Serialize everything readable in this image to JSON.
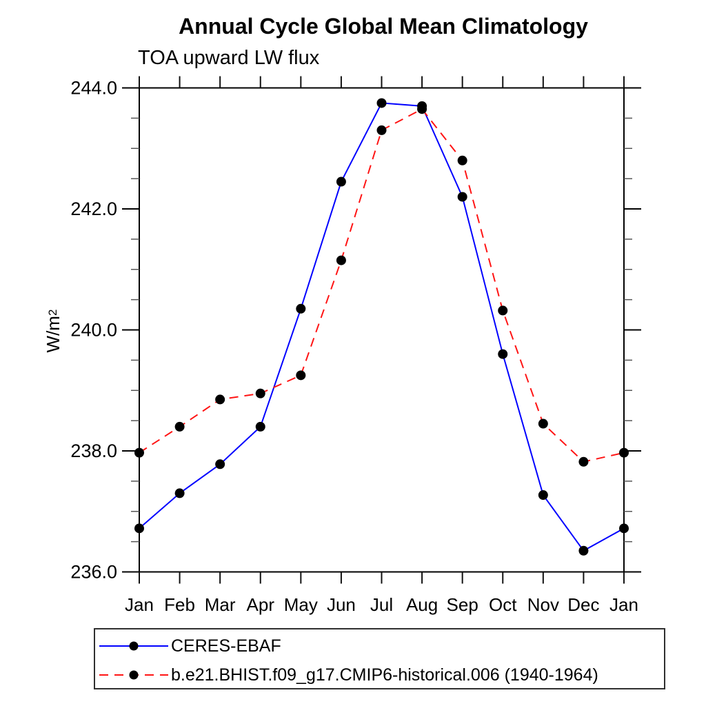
{
  "page": {
    "background": "#ffffff"
  },
  "chart": {
    "title": "Annual Cycle Global Mean Climatology",
    "subtitle": "TOA upward LW flux",
    "ylabel_base": "W/m",
    "ylabel_exp": "2"
  },
  "legend": {
    "entries": [
      {
        "label": "CERES-EBAF",
        "color": "#0000ff",
        "style": "solid",
        "marker_color": "#000000"
      },
      {
        "label": "b.e21.BHIST.f09_g17.CMIP6-historical.006 (1940-1964)",
        "color": "#ff1414",
        "style": "dashed",
        "marker_color": "#000000"
      }
    ]
  },
  "chart_data": {
    "type": "line",
    "title": "Annual Cycle Global Mean Climatology",
    "subtitle": "TOA upward LW flux",
    "ylabel": "W/m2",
    "xlabel": "",
    "categories": [
      "Jan",
      "Feb",
      "Mar",
      "Apr",
      "May",
      "Jun",
      "Jul",
      "Aug",
      "Sep",
      "Oct",
      "Nov",
      "Dec",
      "Jan"
    ],
    "series": [
      {
        "name": "CERES-EBAF",
        "color": "#0000ff",
        "style": "solid",
        "marker": "filled-circle",
        "values": [
          236.72,
          237.3,
          237.78,
          238.4,
          240.35,
          242.45,
          243.75,
          243.7,
          242.2,
          239.6,
          237.27,
          236.35,
          236.72
        ]
      },
      {
        "name": "b.e21.BHIST.f09_g17.CMIP6-historical.006 (1940-1964)",
        "color": "#ff1414",
        "style": "dashed",
        "marker": "filled-circle",
        "values": [
          237.97,
          238.4,
          238.85,
          238.95,
          239.25,
          241.15,
          243.3,
          243.65,
          242.8,
          240.32,
          238.45,
          237.82,
          237.97
        ]
      }
    ],
    "ylim": [
      236.0,
      244.0
    ],
    "ytick_major_step": 2.0,
    "ytick_minor_step": 0.5,
    "ytick_values": [
      244.0,
      242.0,
      240.0,
      238.0,
      236.0
    ],
    "ytick_labels": [
      "244.0",
      "242.0",
      "240.0",
      "238.0",
      "236.0"
    ],
    "grid": false,
    "frame": "box-with-crossed-corners",
    "legend_position": "bottom-left-box"
  }
}
